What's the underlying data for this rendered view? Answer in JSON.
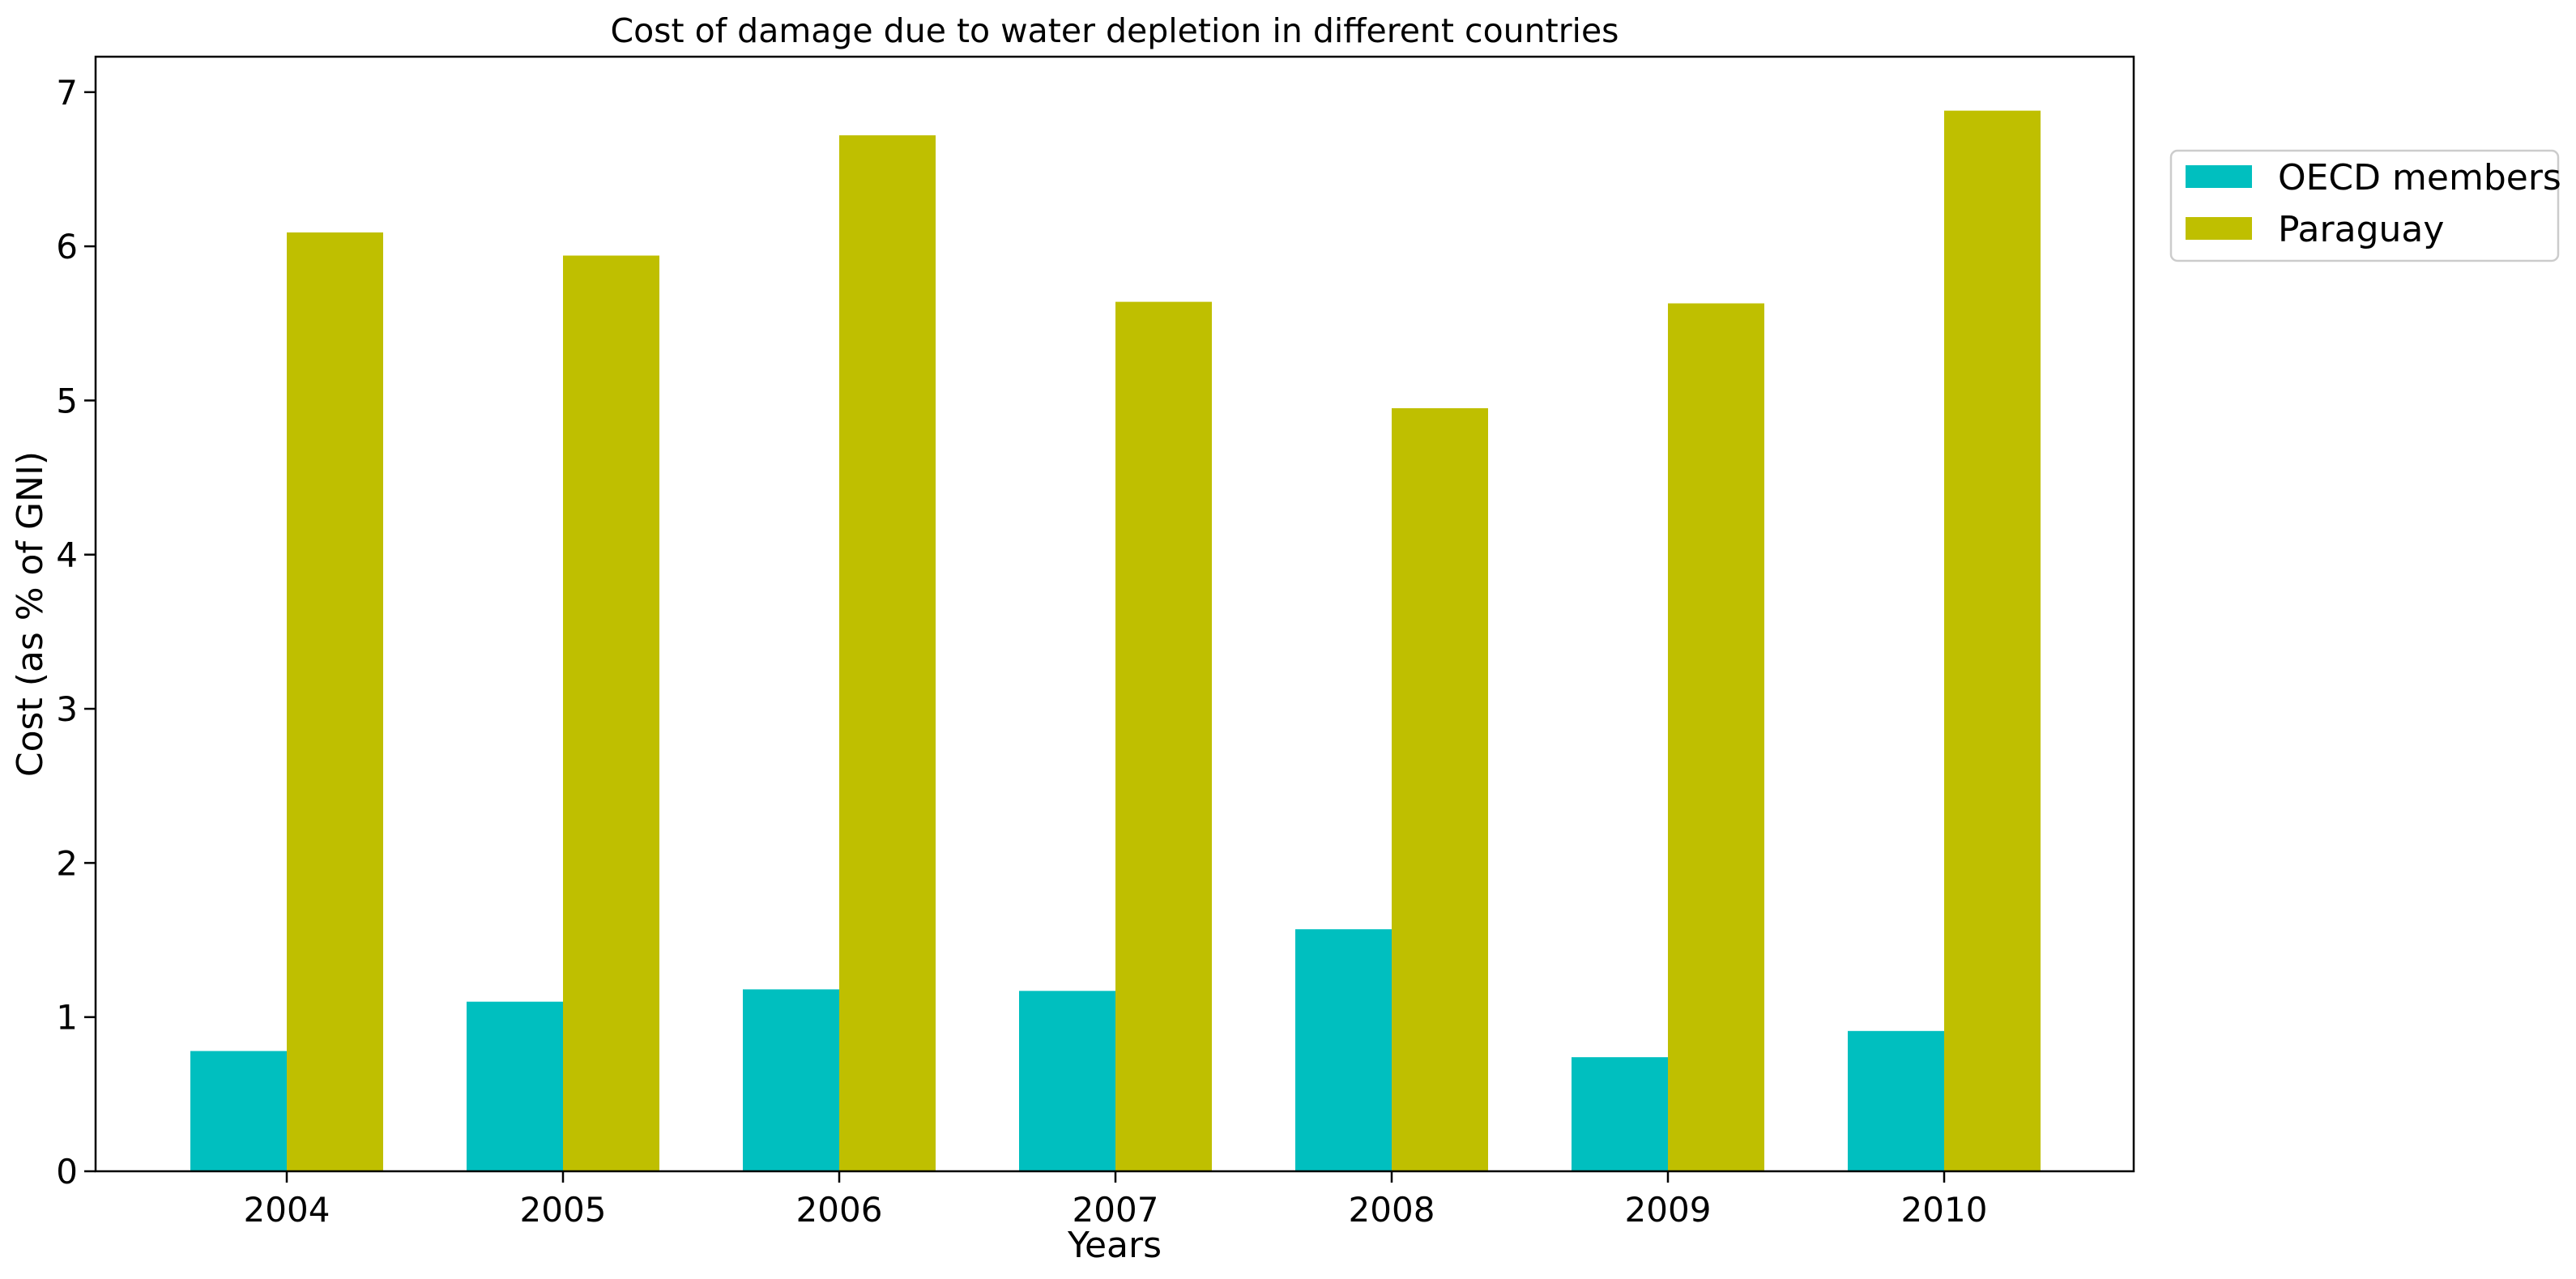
{
  "chart_data": {
    "type": "bar",
    "title": "Cost of damage due to water depletion in different countries",
    "xlabel": "Years",
    "ylabel": "Cost (as % of GNI)",
    "categories": [
      "2004",
      "2005",
      "2006",
      "2007",
      "2008",
      "2009",
      "2010"
    ],
    "series": [
      {
        "name": "OECD members",
        "color": "#00bfbf",
        "values": [
          0.78,
          1.1,
          1.18,
          1.17,
          1.57,
          0.74,
          0.91
        ]
      },
      {
        "name": "Paraguay",
        "color": "#bfbf00",
        "values": [
          6.09,
          5.94,
          6.72,
          5.64,
          4.95,
          5.63,
          6.88
        ]
      }
    ],
    "ylim": [
      0,
      7.23
    ],
    "yticks": [
      "0",
      "1",
      "2",
      "3",
      "4",
      "5",
      "6",
      "7"
    ],
    "grid": false,
    "legend_position": "upper-right-outside"
  }
}
